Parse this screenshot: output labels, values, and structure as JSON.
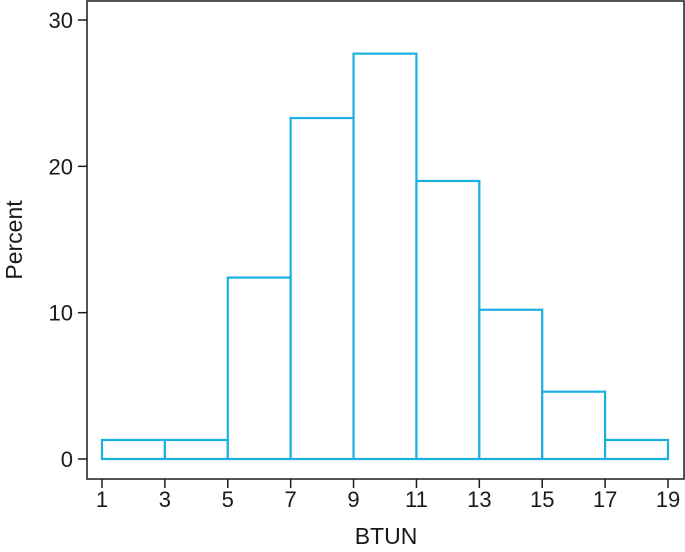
{
  "chart_data": {
    "type": "bar",
    "subtype": "histogram",
    "title": "",
    "xlabel": "BTUN",
    "ylabel": "Percent",
    "bin_edges": [
      1,
      3,
      5,
      7,
      9,
      11,
      13,
      15,
      17,
      19
    ],
    "values": [
      1.3,
      1.3,
      12.4,
      23.3,
      27.7,
      19.0,
      10.2,
      4.6,
      1.3
    ],
    "xlim": [
      1,
      19
    ],
    "ylim": [
      0,
      30
    ],
    "xticks": [
      1,
      3,
      5,
      7,
      9,
      11,
      13,
      15,
      17,
      19
    ],
    "yticks": [
      0,
      10,
      20,
      30
    ],
    "grid": false,
    "legend": "none",
    "bar_color": "#1ab0e0",
    "bar_fill": "#ffffff",
    "axis_color": "#1a1a1a"
  }
}
